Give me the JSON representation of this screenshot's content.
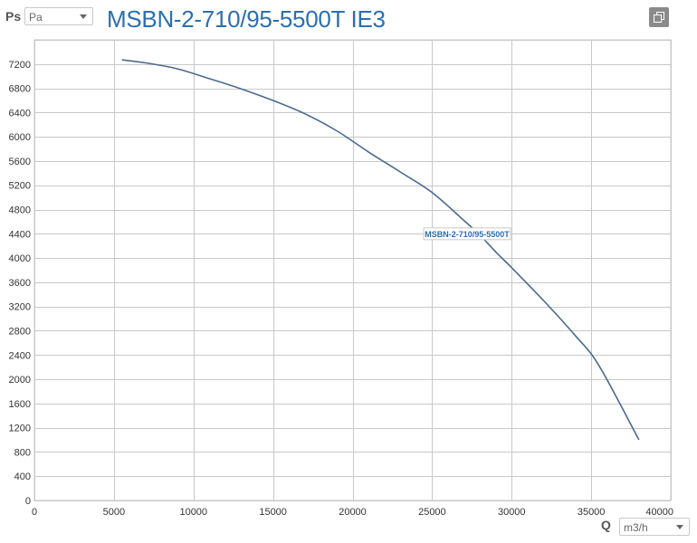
{
  "header": {
    "y_axis_symbol": "Ps",
    "pressure_unit": "Pa",
    "title": "MSBN-2-710/95-5500T IE3",
    "copy_icon": "copy-icon"
  },
  "footer": {
    "x_axis_symbol": "Q",
    "flow_unit": "m3/h"
  },
  "colors": {
    "title": "#2a6fb0",
    "curve": "#4a6a8f",
    "grid": "#c8c8c8",
    "label": "#2a6fb0"
  },
  "chart_data": {
    "type": "line",
    "title": "MSBN-2-710/95-5500T IE3",
    "xlabel": "Q",
    "ylabel": "Ps",
    "xlim": [
      0,
      40000
    ],
    "ylim": [
      0,
      7600
    ],
    "x_ticks": [
      0,
      5000,
      10000,
      15000,
      20000,
      25000,
      30000,
      35000,
      40000
    ],
    "y_ticks": [
      0,
      400,
      800,
      1200,
      1600,
      2000,
      2400,
      2800,
      3200,
      3600,
      4000,
      4400,
      4800,
      5200,
      5600,
      6000,
      6400,
      6800,
      7200
    ],
    "x_tick_labels": [
      "0",
      "5000",
      "10000",
      "15000",
      "20000",
      "25000",
      "30000",
      "35000",
      "40000"
    ],
    "y_tick_labels": [
      "0",
      "400",
      "800",
      "1200",
      "1600",
      "2000",
      "2400",
      "2800",
      "3200",
      "3600",
      "4000",
      "4400",
      "4800",
      "5200",
      "5600",
      "6000",
      "6400",
      "6800",
      "7200"
    ],
    "grid": true,
    "series": [
      {
        "name": "MSBN-2-710/95-5500T",
        "x": [
          5500,
          7000,
          9000,
          11000,
          13000,
          15000,
          17000,
          19000,
          21000,
          23000,
          25000,
          27000,
          28000,
          29000,
          30000,
          32000,
          34000,
          35500,
          38000
        ],
        "y": [
          7270,
          7220,
          7120,
          6960,
          6790,
          6600,
          6380,
          6100,
          5750,
          5420,
          5080,
          4620,
          4380,
          4100,
          3840,
          3300,
          2720,
          2220,
          1000
        ]
      }
    ],
    "annotations": [
      {
        "text": "MSBN-2-710/95-5500T",
        "x": 27200,
        "y": 4400
      }
    ]
  }
}
